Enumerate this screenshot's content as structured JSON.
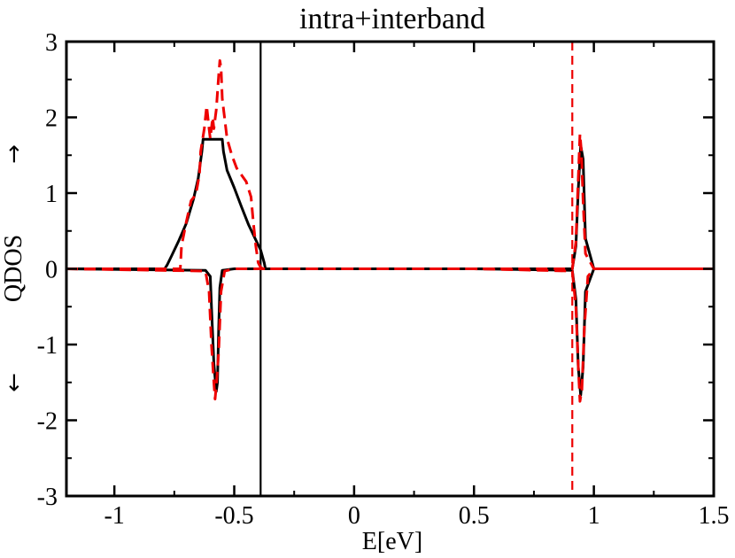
{
  "chart_data": {
    "type": "line",
    "title": "intra+interband",
    "xlabel": "E[eV]",
    "ylabel": "QDOS",
    "ylabel_up_arrow": "→",
    "ylabel_down_arrow": "←",
    "xlim": [
      -1.2,
      1.5
    ],
    "ylim": [
      -3,
      3
    ],
    "xticks": [
      -1,
      -0.5,
      0,
      0.5,
      1,
      1.5
    ],
    "xtick_labels": [
      "-1",
      "-0.5",
      "0",
      "0.5",
      "1",
      "1.5"
    ],
    "yticks": [
      -3,
      -2,
      -1,
      0,
      1,
      2,
      3
    ],
    "ytick_labels": [
      "-3",
      "-2",
      "-1",
      "0",
      "1",
      "2",
      "3"
    ],
    "grid": false,
    "colors": {
      "black": "#000000",
      "red": "#ee0000"
    },
    "vlines": [
      {
        "x": -0.39,
        "color": "#000000",
        "style": "solid"
      },
      {
        "x": 0.91,
        "color": "#ee0000",
        "style": "dashed"
      }
    ],
    "series": [
      {
        "color": "#000000",
        "style": "solid",
        "x": [
          -1.2,
          -0.79,
          -0.78,
          -0.76,
          -0.73,
          -0.7,
          -0.67,
          -0.65,
          -0.635,
          -0.63,
          -0.55,
          -0.545,
          -0.53,
          -0.5,
          -0.47,
          -0.44,
          -0.41,
          -0.39,
          -0.375,
          -0.37,
          0.0,
          0.5,
          0.91,
          0.925,
          0.935,
          0.945,
          0.955,
          0.965,
          1.0,
          1.5
        ],
        "y": [
          0,
          0,
          0.05,
          0.18,
          0.38,
          0.6,
          0.92,
          1.2,
          1.55,
          1.71,
          1.71,
          1.55,
          1.3,
          1.07,
          0.82,
          0.58,
          0.38,
          0.25,
          0.08,
          0,
          0,
          0,
          0,
          0.3,
          1.05,
          1.63,
          1.45,
          0.4,
          0,
          0
        ]
      },
      {
        "color": "#000000",
        "style": "solid",
        "x": [
          -1.2,
          -0.62,
          -0.6,
          -0.595,
          -0.585,
          -0.575,
          -0.57,
          -0.565,
          -0.56,
          -0.55,
          -0.5,
          0.0,
          0.5,
          0.91,
          0.925,
          0.935,
          0.945,
          0.955,
          0.965,
          1.0,
          1.5
        ],
        "y": [
          0,
          -0.02,
          -0.1,
          -0.5,
          -1.25,
          -1.62,
          -1.5,
          -0.8,
          -0.25,
          -0.02,
          0,
          0,
          0,
          -0.02,
          -0.4,
          -1.3,
          -1.67,
          -1.3,
          -0.3,
          0,
          0
        ]
      },
      {
        "color": "#ee0000",
        "style": "dashed",
        "x": [
          -1.2,
          -0.725,
          -0.72,
          -0.7,
          -0.68,
          -0.66,
          -0.645,
          -0.64,
          -0.625,
          -0.615,
          -0.605,
          -0.6,
          -0.59,
          -0.585,
          -0.575,
          -0.565,
          -0.56,
          -0.555,
          -0.55,
          -0.53,
          -0.51,
          -0.49,
          -0.45,
          -0.43,
          -0.42,
          -0.41,
          -0.4,
          -0.39,
          -0.38,
          0.0,
          0.5,
          0.91,
          0.925,
          0.935,
          0.942,
          0.948,
          0.955,
          0.965,
          1.0,
          1.5
        ],
        "y": [
          0,
          0,
          0.3,
          0.62,
          0.9,
          0.98,
          1.25,
          1.55,
          1.85,
          2.15,
          1.85,
          1.72,
          2.0,
          1.85,
          2.1,
          2.55,
          2.75,
          2.65,
          2.25,
          1.72,
          1.5,
          1.33,
          1.15,
          0.95,
          0.6,
          0.3,
          0.08,
          0.02,
          0,
          0,
          0,
          0,
          0.35,
          1.2,
          1.78,
          1.55,
          0.9,
          0.2,
          0,
          0
        ]
      },
      {
        "color": "#ee0000",
        "style": "dashed",
        "x": [
          -1.2,
          -0.62,
          -0.605,
          -0.595,
          -0.585,
          -0.58,
          -0.575,
          -0.565,
          -0.555,
          -0.54,
          -0.5,
          0.0,
          0.5,
          0.91,
          0.925,
          0.935,
          0.942,
          0.95,
          0.96,
          0.975,
          1.0,
          1.5
        ],
        "y": [
          0,
          -0.03,
          -0.3,
          -1.0,
          -1.5,
          -1.72,
          -1.55,
          -1.1,
          -0.3,
          -0.03,
          0,
          0,
          0,
          -0.03,
          -0.5,
          -1.3,
          -1.75,
          -1.6,
          -0.8,
          -0.1,
          0,
          0
        ]
      }
    ]
  }
}
